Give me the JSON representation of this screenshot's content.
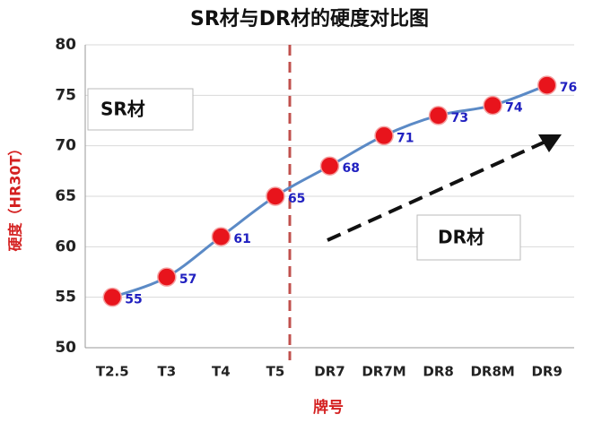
{
  "chart_data": {
    "type": "line",
    "title": "SR材与DR材的硬度对比图",
    "x_label": "牌号",
    "y_label": "硬度（HR30T）",
    "categories": [
      "T2.5",
      "T3",
      "T4",
      "T5",
      "DR7",
      "DR7M",
      "DR8",
      "DR8M",
      "DR9"
    ],
    "values": [
      55,
      57,
      61,
      65,
      68,
      71,
      73,
      74,
      76
    ],
    "color": "#5b8ac6",
    "marker_color": "#e8141c",
    "ylim": [
      50,
      80
    ],
    "yticks": [
      50,
      55,
      60,
      65,
      70,
      75,
      80
    ],
    "grid": true,
    "annotations": [
      "SR材",
      "DR材"
    ]
  }
}
